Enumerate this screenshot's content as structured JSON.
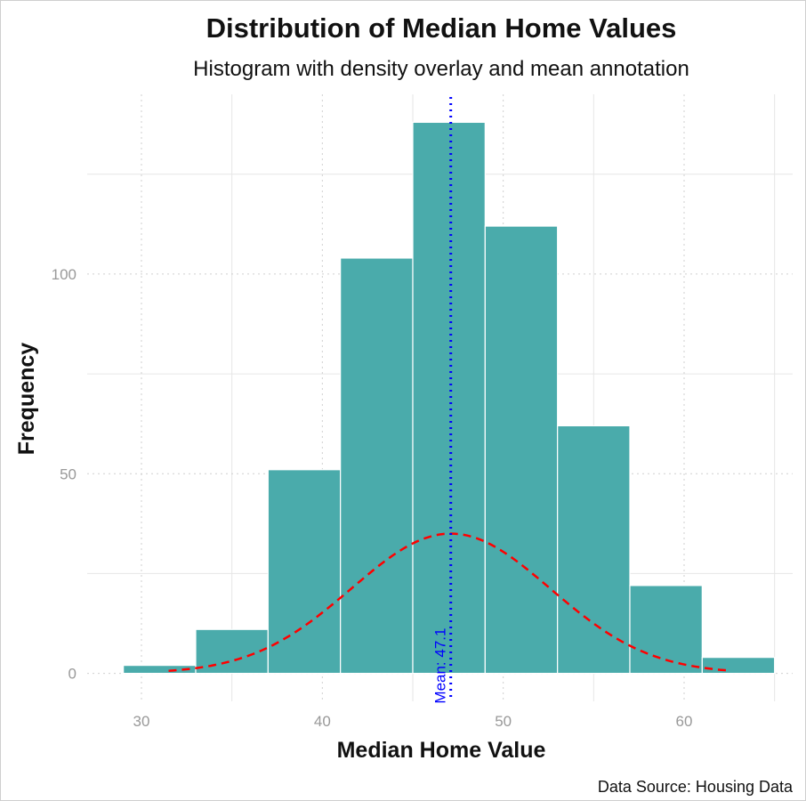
{
  "chart_data": {
    "type": "bar",
    "title": "Distribution of Median Home Values",
    "subtitle": "Histogram with density overlay and mean annotation",
    "xlabel": "Median Home Value",
    "ylabel": "Frequency",
    "caption": "Data Source: Housing Data",
    "bins": [
      {
        "x0": 29,
        "x1": 33,
        "count": 2
      },
      {
        "x0": 33,
        "x1": 37,
        "count": 11
      },
      {
        "x0": 37,
        "x1": 41,
        "count": 51
      },
      {
        "x0": 41,
        "x1": 45,
        "count": 104
      },
      {
        "x0": 45,
        "x1": 49,
        "count": 138
      },
      {
        "x0": 49,
        "x1": 53,
        "count": 112
      },
      {
        "x0": 53,
        "x1": 57,
        "count": 62
      },
      {
        "x0": 57,
        "x1": 61,
        "count": 22
      },
      {
        "x0": 61,
        "x1": 65,
        "count": 4
      }
    ],
    "density_overlay": {
      "mean": 47.1,
      "sd": 5.5,
      "peak": 35,
      "x_range": [
        31.5,
        62.5
      ]
    },
    "mean_annotation": {
      "value": 47.1,
      "label": "Mean: 47.1"
    },
    "xlim": [
      27,
      66
    ],
    "ylim": [
      -7,
      145
    ],
    "x_ticks": [
      30,
      40,
      50,
      60
    ],
    "y_ticks": [
      0,
      50,
      100
    ],
    "grid": true,
    "colors": {
      "bars": "#4aabab",
      "bar_outline": "#ffffff",
      "density": "#ff0000",
      "mean_line": "#0000ff"
    }
  }
}
